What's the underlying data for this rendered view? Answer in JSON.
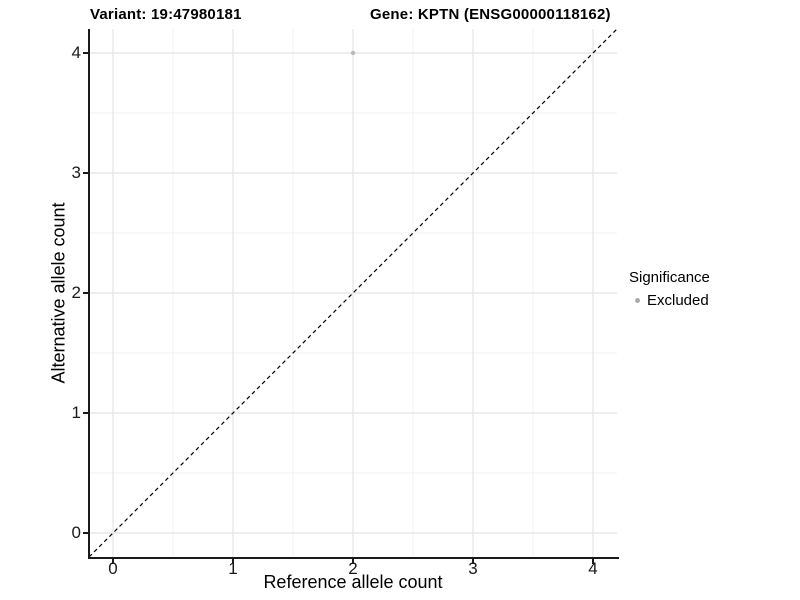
{
  "chart_data": {
    "type": "scatter",
    "title_left": "Variant: 19:47980181",
    "title_right": "Gene: KPTN (ENSG00000118162)",
    "xlabel": "Reference allele count",
    "ylabel": "Alternative allele count",
    "xlim": [
      -0.2,
      4.2
    ],
    "ylim": [
      -0.2,
      4.2
    ],
    "xticks": [
      0,
      1,
      2,
      3,
      4
    ],
    "yticks": [
      0,
      1,
      2,
      3,
      4
    ],
    "grid": {
      "major": true,
      "minor": true,
      "minor_step": 0.5
    },
    "reference_line": {
      "type": "identity-diagonal",
      "style": "dashed",
      "color": "#000000"
    },
    "series": [
      {
        "name": "Excluded",
        "color": "#b9b9b9",
        "points": [
          {
            "x": 2,
            "y": 4
          }
        ]
      }
    ],
    "legend": {
      "title": "Significance",
      "position": "right",
      "entries": [
        {
          "label": "Excluded",
          "color": "#aaaaaa"
        }
      ]
    }
  },
  "colors": {
    "background": "#ffffff",
    "axis_line": "#1a1a1a",
    "tick_text": "#1a1a1a",
    "grid_major": "#e4e4e4",
    "grid_minor": "#f0f0f0",
    "point": "#b9b9b9",
    "dashed_line": "#000000"
  }
}
